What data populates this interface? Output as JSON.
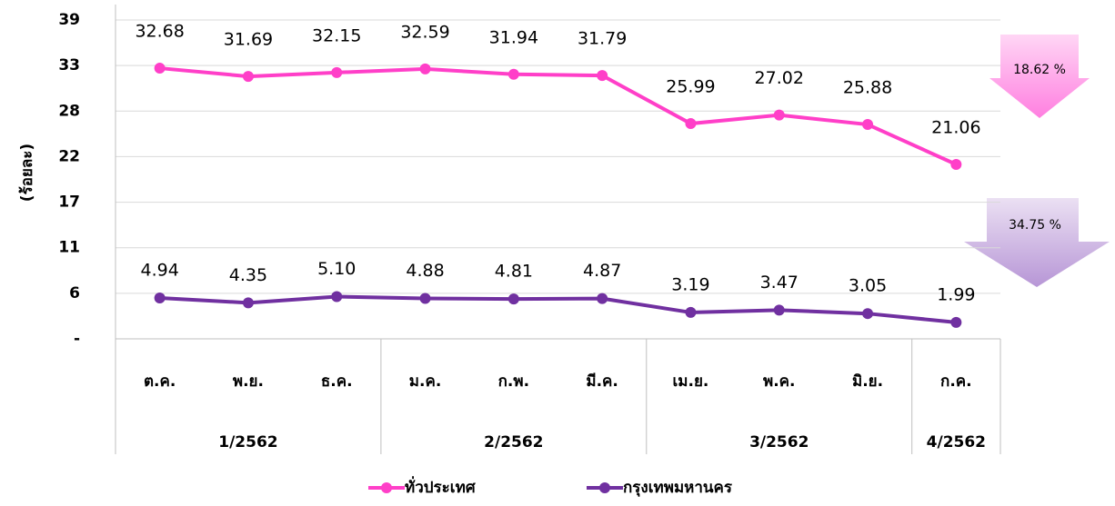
{
  "chart_data": {
    "type": "line",
    "y_label": "(ร้อยละ)",
    "category_groups": [
      {
        "name": "1/2562",
        "categories": [
          "ต.ค.",
          "พ.ย.",
          "ธ.ค."
        ]
      },
      {
        "name": "2/2562",
        "categories": [
          "ม.ค.",
          "ก.พ.",
          "มี.ค."
        ]
      },
      {
        "name": "3/2562",
        "categories": [
          "เม.ย.",
          "พ.ค.",
          "มิ.ย."
        ]
      },
      {
        "name": "4/2562",
        "categories": [
          "ก.ค."
        ]
      }
    ],
    "series": [
      {
        "name": "ทั่วประเทศ",
        "color": "#ff3fc8",
        "values": [
          32.68,
          31.69,
          32.15,
          32.59,
          31.94,
          31.79,
          25.99,
          27.02,
          25.88,
          21.06
        ],
        "value_labels": [
          "32.68",
          "31.69",
          "32.15",
          "32.59",
          "31.94",
          "31.79",
          "25.99",
          "27.02",
          "25.88",
          "21.06"
        ]
      },
      {
        "name": "กรุงเทพมหานคร",
        "color": "#7030a0",
        "values": [
          4.94,
          4.35,
          5.1,
          4.88,
          4.81,
          4.87,
          3.19,
          3.47,
          3.05,
          1.99
        ],
        "value_labels": [
          "4.94",
          "4.35",
          "5.10",
          "4.88",
          "4.81",
          "4.87",
          "3.19",
          "3.47",
          "3.05",
          "1.99"
        ]
      }
    ],
    "ylim": [
      0,
      38.5
    ],
    "yticks": [
      {
        "value": 0,
        "label": "-"
      },
      {
        "value": 5.5,
        "label": "6"
      },
      11,
      {
        "value": 16.5,
        "label": "17"
      },
      22,
      {
        "value": 27.5,
        "label": "28"
      },
      33,
      {
        "value": 38.5,
        "label": "39"
      }
    ],
    "grid": true,
    "annotations": [
      {
        "text": "18.62 %"
      },
      {
        "text": "34.75 %"
      }
    ]
  }
}
